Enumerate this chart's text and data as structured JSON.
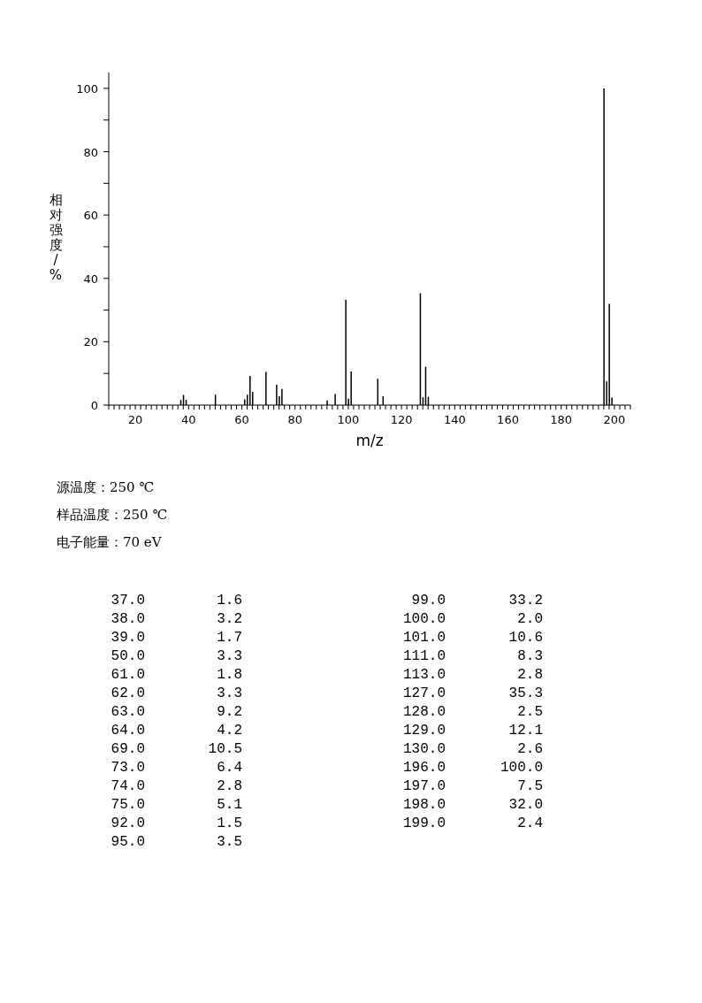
{
  "chart_data": {
    "type": "bar",
    "xlabel": "m/z",
    "ylabel": "相对强度/%",
    "x": [
      37,
      38,
      39,
      50,
      61,
      62,
      63,
      64,
      69,
      73,
      74,
      75,
      92,
      95,
      99,
      100,
      101,
      111,
      113,
      127,
      128,
      129,
      130,
      196,
      197,
      198,
      199
    ],
    "values": [
      1.6,
      3.2,
      1.7,
      3.3,
      1.8,
      3.3,
      9.2,
      4.2,
      10.5,
      6.4,
      2.8,
      5.1,
      1.5,
      3.5,
      33.2,
      2.0,
      10.6,
      8.3,
      2.8,
      35.3,
      2.5,
      12.1,
      2.6,
      100.0,
      7.5,
      32.0,
      2.4
    ],
    "color": "#000000",
    "xlim": [
      10,
      206
    ],
    "xticks": [
      {
        "value": 10,
        "label": null
      },
      {
        "value": 12,
        "label": null
      },
      {
        "value": 14,
        "label": null
      },
      {
        "value": 16,
        "label": null
      },
      {
        "value": 18,
        "label": null
      },
      20,
      {
        "value": 22,
        "label": null
      },
      {
        "value": 24,
        "label": null
      },
      {
        "value": 26,
        "label": null
      },
      {
        "value": 28,
        "label": null
      },
      {
        "value": 30,
        "label": null
      },
      {
        "value": 32,
        "label": null
      },
      {
        "value": 34,
        "label": null
      },
      {
        "value": 36,
        "label": null
      },
      {
        "value": 38,
        "label": null
      },
      40,
      {
        "value": 42,
        "label": null
      },
      {
        "value": 44,
        "label": null
      },
      {
        "value": 46,
        "label": null
      },
      {
        "value": 48,
        "label": null
      },
      {
        "value": 50,
        "label": null
      },
      {
        "value": 52,
        "label": null
      },
      {
        "value": 54,
        "label": null
      },
      {
        "value": 56,
        "label": null
      },
      {
        "value": 58,
        "label": null
      },
      60,
      {
        "value": 62,
        "label": null
      },
      {
        "value": 64,
        "label": null
      },
      {
        "value": 66,
        "label": null
      },
      {
        "value": 68,
        "label": null
      },
      {
        "value": 70,
        "label": null
      },
      {
        "value": 72,
        "label": null
      },
      {
        "value": 74,
        "label": null
      },
      {
        "value": 76,
        "label": null
      },
      {
        "value": 78,
        "label": null
      },
      80,
      {
        "value": 82,
        "label": null
      },
      {
        "value": 84,
        "label": null
      },
      {
        "value": 86,
        "label": null
      },
      {
        "value": 88,
        "label": null
      },
      {
        "value": 90,
        "label": null
      },
      {
        "value": 92,
        "label": null
      },
      {
        "value": 94,
        "label": null
      },
      {
        "value": 96,
        "label": null
      },
      {
        "value": 98,
        "label": null
      },
      100,
      {
        "value": 102,
        "label": null
      },
      {
        "value": 104,
        "label": null
      },
      {
        "value": 106,
        "label": null
      },
      {
        "value": 108,
        "label": null
      },
      {
        "value": 110,
        "label": null
      },
      {
        "value": 112,
        "label": null
      },
      {
        "value": 114,
        "label": null
      },
      {
        "value": 116,
        "label": null
      },
      {
        "value": 118,
        "label": null
      },
      120,
      {
        "value": 122,
        "label": null
      },
      {
        "value": 124,
        "label": null
      },
      {
        "value": 126,
        "label": null
      },
      {
        "value": 128,
        "label": null
      },
      {
        "value": 130,
        "label": null
      },
      {
        "value": 132,
        "label": null
      },
      {
        "value": 134,
        "label": null
      },
      {
        "value": 136,
        "label": null
      },
      {
        "value": 138,
        "label": null
      },
      140,
      {
        "value": 142,
        "label": null
      },
      {
        "value": 144,
        "label": null
      },
      {
        "value": 146,
        "label": null
      },
      {
        "value": 148,
        "label": null
      },
      {
        "value": 150,
        "label": null
      },
      {
        "value": 152,
        "label": null
      },
      {
        "value": 154,
        "label": null
      },
      {
        "value": 156,
        "label": null
      },
      {
        "value": 158,
        "label": null
      },
      160,
      {
        "value": 162,
        "label": null
      },
      {
        "value": 164,
        "label": null
      },
      {
        "value": 166,
        "label": null
      },
      {
        "value": 168,
        "label": null
      },
      {
        "value": 170,
        "label": null
      },
      {
        "value": 172,
        "label": null
      },
      {
        "value": 174,
        "label": null
      },
      {
        "value": 176,
        "label": null
      },
      {
        "value": 178,
        "label": null
      },
      180,
      {
        "value": 182,
        "label": null
      },
      {
        "value": 184,
        "label": null
      },
      {
        "value": 186,
        "label": null
      },
      {
        "value": 188,
        "label": null
      },
      {
        "value": 190,
        "label": null
      },
      {
        "value": 192,
        "label": null
      },
      {
        "value": 194,
        "label": null
      },
      {
        "value": 196,
        "label": null
      },
      {
        "value": 198,
        "label": null
      },
      200,
      {
        "value": 202,
        "label": null
      },
      {
        "value": 204,
        "label": null
      },
      {
        "value": 206,
        "label": null
      }
    ],
    "ylim": [
      0,
      105
    ],
    "yticks": [
      0,
      {
        "value": 10,
        "label": null
      },
      20,
      {
        "value": 30,
        "label": null
      },
      40,
      {
        "value": 50,
        "label": null
      },
      60,
      {
        "value": 70,
        "label": null
      },
      80,
      {
        "value": 90,
        "label": null
      },
      100
    ],
    "grid": false,
    "legend": false,
    "annotations": [
      "源温度：250 ℃",
      "样品温度：250 ℃",
      "电子能量：70 eV",
      "37.0",
      "1.6",
      "38.0",
      "3.2",
      "39.0",
      "1.7",
      "50.0",
      "3.3",
      "61.0",
      "1.8",
      "62.0",
      "3.3",
      "63.0",
      "9.2",
      "64.0",
      "4.2",
      "69.0",
      "10.5",
      "73.0",
      "6.4",
      "74.0",
      "2.8",
      "75.0",
      "5.1",
      "92.0",
      "1.5",
      "95.0",
      "3.5",
      "99.0",
      "33.2",
      "100.0",
      "2.0",
      "101.0",
      "10.6",
      "111.0",
      "8.3",
      "113.0",
      "2.8",
      "127.0",
      "35.3",
      "128.0",
      "2.5",
      "129.0",
      "12.1",
      "130.0",
      "2.6",
      "196.0",
      "100.0",
      "197.0",
      "7.5",
      "198.0",
      "32.0",
      "199.0",
      "2.4"
    ]
  }
}
